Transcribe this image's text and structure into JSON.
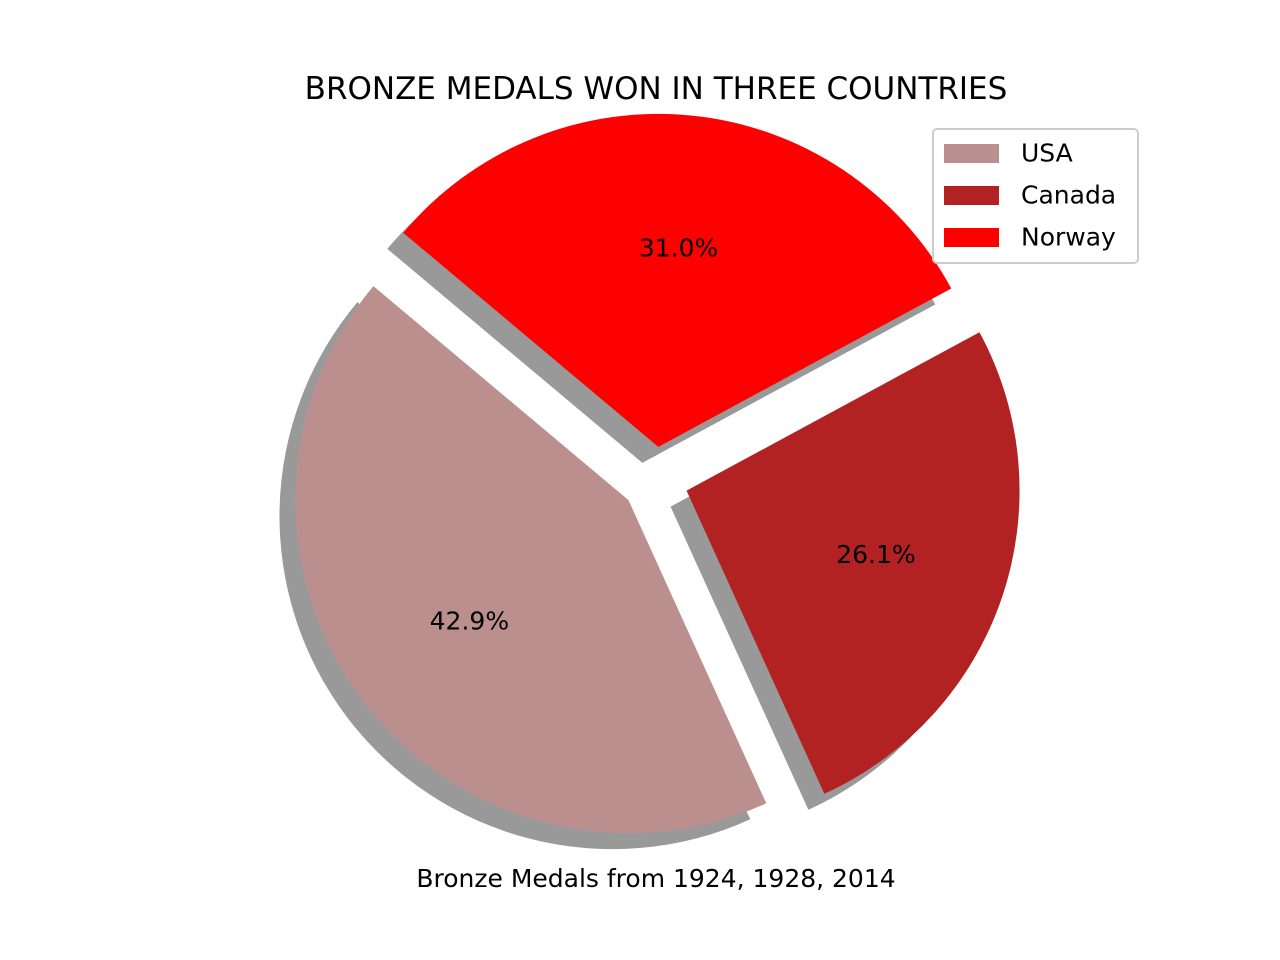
{
  "chart_data": {
    "type": "pie",
    "title": "BRONZE MEDALS WON IN THREE COUNTRIES",
    "xlabel": "Bronze Medals from 1924, 1928, 2014",
    "ylabel": "",
    "shadow": true,
    "exploded": true,
    "legend_position": "top-right",
    "slices": [
      {
        "label": "USA",
        "percent": 42.9,
        "percent_label": "42.9%",
        "color": "#bc8f8f"
      },
      {
        "label": "Canada",
        "percent": 26.1,
        "percent_label": "26.1%",
        "color": "#b22222"
      },
      {
        "label": "Norway",
        "percent": 31.0,
        "percent_label": "31.0%",
        "color": "#ff0000"
      }
    ]
  }
}
